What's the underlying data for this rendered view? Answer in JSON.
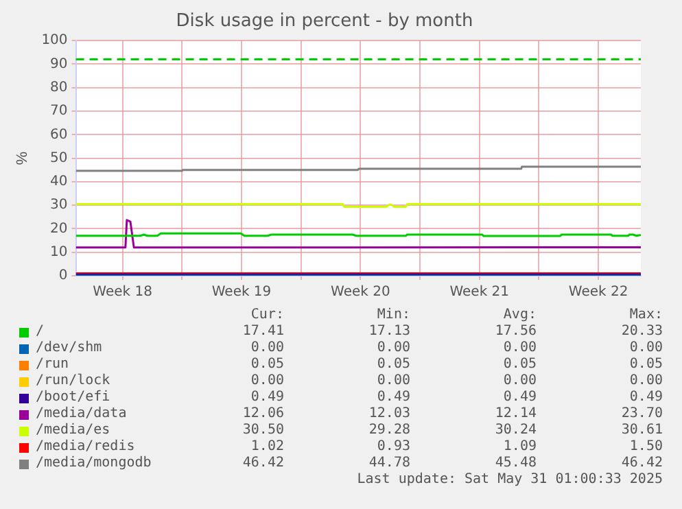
{
  "chart_data": {
    "type": "line",
    "title": "Disk usage in percent - by month",
    "ylabel": "%",
    "xlim": [
      "2025-04-27T18:00",
      "2025-05-31T00:00"
    ],
    "xticks": [
      {
        "value": "2025-04-30T12:00",
        "label": "Week 18"
      },
      {
        "value": "2025-05-04T00:00",
        "label": null
      },
      {
        "value": "2025-05-07T12:00",
        "label": "Week 19"
      },
      {
        "value": "2025-05-11T00:00",
        "label": null
      },
      {
        "value": "2025-05-14T12:00",
        "label": "Week 20"
      },
      {
        "value": "2025-05-18T00:00",
        "label": null
      },
      {
        "value": "2025-05-21T12:00",
        "label": "Week 21"
      },
      {
        "value": "2025-05-25T00:00",
        "label": null
      },
      {
        "value": "2025-05-28T12:00",
        "label": "Week 22"
      }
    ],
    "ylim": [
      0,
      100
    ],
    "yticks": [
      0,
      10,
      20,
      30,
      40,
      50,
      60,
      70,
      80,
      90,
      100
    ],
    "grid": true,
    "legend": "bottom",
    "marker": "none",
    "line_style": "solid",
    "ref_lines": [
      {
        "axis": "y",
        "value": 92,
        "color": "#00cc00",
        "line_style": "dashed"
      }
    ],
    "series": [
      {
        "name": "/",
        "color": "#00cc00",
        "x": [
          "2025-04-27T18:00",
          "2025-05-01T13:00",
          "2025-05-01T18:00",
          "2025-05-01T23:00",
          "2025-05-02T13:00",
          "2025-05-02T18:00",
          "2025-05-07T11:00",
          "2025-05-07T16:00",
          "2025-05-09T01:00",
          "2025-05-09T06:00",
          "2025-05-14T01:00",
          "2025-05-14T06:00",
          "2025-05-17T04:00",
          "2025-05-17T06:00",
          "2025-05-21T16:00",
          "2025-05-21T18:00",
          "2025-05-26T06:00",
          "2025-05-26T08:00",
          "2025-05-29T06:00",
          "2025-05-29T08:00",
          "2025-05-30T06:00",
          "2025-05-30T08:00",
          "2025-05-30T13:00",
          "2025-05-30T18:00",
          "2025-05-31T00:00"
        ],
        "values": [
          17,
          17,
          17.5,
          17,
          17,
          18,
          18,
          17,
          17,
          17.5,
          17.5,
          17,
          17,
          17.5,
          17.5,
          16.9,
          16.9,
          17.5,
          17.5,
          17,
          17,
          17.5,
          17.5,
          17,
          17.4
        ]
      },
      {
        "name": "/dev/shm",
        "color": "#0066b3",
        "x": [
          "2025-04-27T18:00",
          "2025-05-31T00:00"
        ],
        "values": [
          0,
          0
        ]
      },
      {
        "name": "/run",
        "color": "#ff8000"
      },
      {
        "name": "/run/lock",
        "color": "#ffcc00"
      },
      {
        "name": "/boot/efi",
        "color": "#330099",
        "x": [
          "2025-04-27T18:00",
          "2025-05-31T00:00"
        ],
        "values": [
          0.5,
          0.5
        ]
      },
      {
        "name": "/media/data",
        "color": "#990099",
        "x": [
          "2025-04-27T18:00",
          "2025-04-30T16:00",
          "2025-04-30T18:00",
          "2025-04-30T23:00",
          "2025-05-01T04:00",
          "2025-05-31T00:00"
        ],
        "values": [
          12,
          12,
          23.7,
          23,
          12,
          12.1
        ]
      },
      {
        "name": "/media/es",
        "color": "#ccff00",
        "x": [
          "2025-04-27T18:00",
          "2025-05-13T11:00",
          "2025-05-13T13:00",
          "2025-05-16T01:00",
          "2025-05-16T04:00",
          "2025-05-16T08:00",
          "2025-05-16T11:00",
          "2025-05-17T04:00",
          "2025-05-17T06:00",
          "2025-05-31T00:00"
        ],
        "values": [
          30.5,
          30.5,
          29.3,
          29.3,
          30.2,
          30.2,
          29.3,
          29.3,
          30.5,
          30.5
        ]
      },
      {
        "name": "/media/redis",
        "color": "#ff0000",
        "x": [
          "2025-04-27T18:00",
          "2025-05-31T00:00"
        ],
        "values": [
          1,
          1
        ]
      },
      {
        "name": "/media/mongodb",
        "color": "#808080",
        "x": [
          "2025-04-27T18:00",
          "2025-05-04T00:00",
          "2025-05-04T01:00",
          "2025-05-14T08:00",
          "2025-05-14T10:00",
          "2025-05-23T23:00",
          "2025-05-24T00:00",
          "2025-05-31T00:00"
        ],
        "values": [
          44.6,
          44.6,
          45,
          45,
          45.5,
          45.5,
          46.4,
          46.4
        ]
      }
    ],
    "annotations": [
      "Cur:",
      "Min:",
      "Avg:",
      "Max:",
      "17.41",
      "17.13",
      "17.56",
      "20.33",
      "0.00",
      "0.00",
      "0.00",
      "0.00",
      "0.05",
      "0.05",
      "0.05",
      "0.05",
      "0.00",
      "0.00",
      "0.00",
      "0.00",
      "0.49",
      "0.49",
      "0.49",
      "0.49",
      "12.06",
      "12.03",
      "12.14",
      "23.70",
      "30.50",
      "29.28",
      "30.24",
      "30.61",
      "1.02",
      "0.93",
      "1.09",
      "1.50",
      "46.42",
      "44.78",
      "45.48",
      "46.42",
      "Last update: Sat May 31 01:00:33 2025"
    ]
  }
}
